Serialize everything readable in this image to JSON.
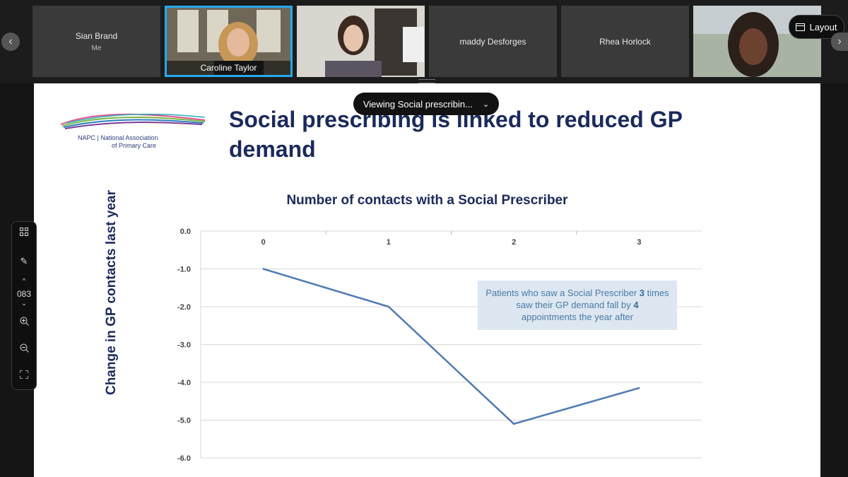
{
  "participants": [
    {
      "name": "Sian Brand",
      "sub": "Me",
      "video": false
    },
    {
      "name": "Caroline Taylor",
      "video": true,
      "active": true
    },
    {
      "name": "",
      "video": true
    },
    {
      "name": "maddy Desforges",
      "video": false
    },
    {
      "name": "Rhea Horlock",
      "video": false
    },
    {
      "name": "",
      "video": true
    }
  ],
  "controls": {
    "layout_label": "Layout",
    "viewing_label": "Viewing Social prescribin...",
    "zoom_value": "083",
    "prev_icon": "chevron-left-icon",
    "next_icon": "chevron-right-icon"
  },
  "slide": {
    "title": "Social prescribing is linked to reduced GP demand",
    "logo_line1": "NAPC  |  National Association",
    "logo_line2": "of Primary Care"
  },
  "chart_data": {
    "type": "line",
    "title": "Number of contacts with a Social Prescriber",
    "ylabel": "Change in GP contacts last  year",
    "categories": [
      "0",
      "1",
      "2",
      "3"
    ],
    "values": [
      -1.0,
      -2.0,
      -5.1,
      -4.15
    ],
    "ylim": [
      -6.0,
      0.0
    ],
    "yticks": [
      "0.0",
      "-1.0",
      "-2.0",
      "-3.0",
      "-4.0",
      "-5.0",
      "-6.0"
    ],
    "grid": true,
    "x_axis_position": "top",
    "line_color": "#4f7bb2",
    "annotation": {
      "pre": "Patients who saw a Social Prescriber ",
      "b1": "3",
      "mid": " times saw their GP demand fall by ",
      "b2": "4",
      "post": " appointments the year after"
    }
  }
}
